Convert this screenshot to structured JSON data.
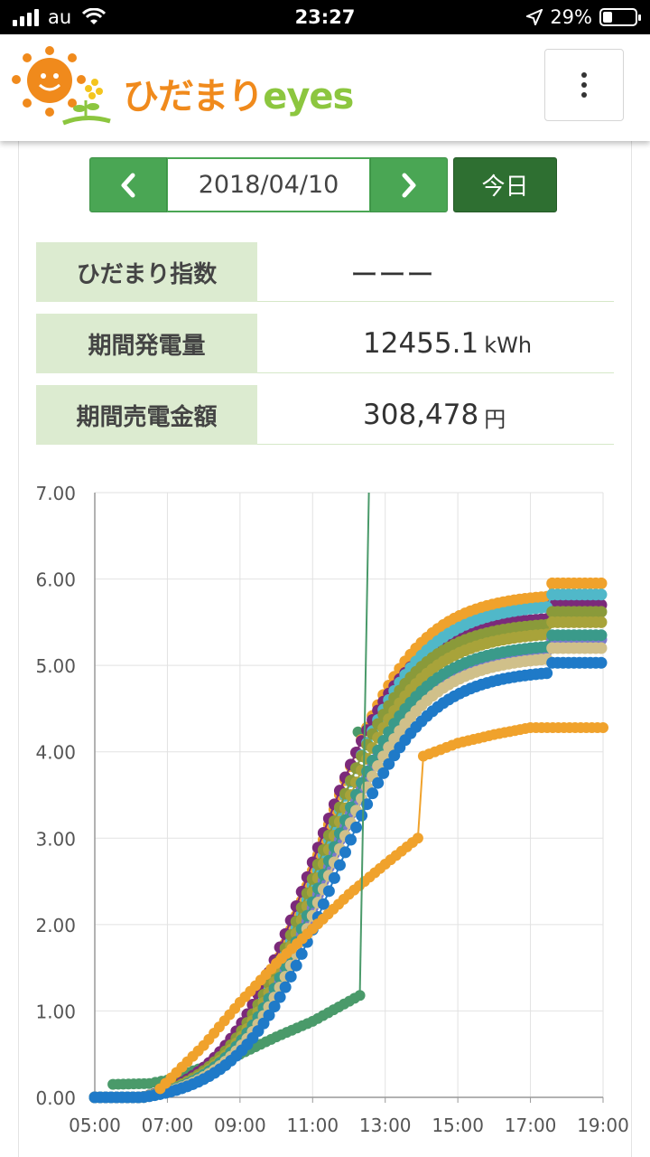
{
  "status_bar": {
    "carrier": "au",
    "time": "23:27",
    "battery": "29%"
  },
  "header": {
    "logo_jp": "ひだまり",
    "logo_en": "eyes",
    "menu_icon": "kebab-menu-icon"
  },
  "date_nav": {
    "prev_icon": "chevron-left-icon",
    "next_icon": "chevron-right-icon",
    "date": "2018/04/10",
    "today_label": "今日"
  },
  "info": {
    "index_label": "ひだまり指数",
    "index_value": "ーーー",
    "generation_label": "期間発電量",
    "generation_value": "12455.1",
    "generation_unit": "kWh",
    "sales_label": "期間売電金額",
    "sales_value": "308,478",
    "sales_unit": "円"
  },
  "colors": {
    "green": "#4aa654",
    "dark_green": "#2e6f31",
    "label_bg": "#dcebd0"
  },
  "chart_data": {
    "type": "line",
    "title": "",
    "xlabel": "",
    "ylabel": "",
    "xlim": [
      5,
      19
    ],
    "ylim": [
      0,
      7
    ],
    "x_ticks": [
      "05:00",
      "07:00",
      "09:00",
      "11:00",
      "13:00",
      "15:00",
      "17:00",
      "19:00"
    ],
    "y_ticks": [
      "0.00",
      "1.00",
      "2.00",
      "3.00",
      "4.00",
      "5.00",
      "6.00",
      "7.00"
    ],
    "grid": true,
    "series": [
      {
        "color": "#f0a22c",
        "final": 5.95,
        "mid": 11.2
      },
      {
        "color": "#7b2a7a",
        "final": 5.7,
        "mid": 11.0
      },
      {
        "color": "#50b8c9",
        "final": 5.82,
        "mid": 11.3
      },
      {
        "color": "#8a9a3a",
        "final": 5.62,
        "mid": 11.15
      },
      {
        "color": "#a8a33a",
        "final": 5.5,
        "mid": 11.25
      },
      {
        "color": "#7a7acc",
        "final": 5.3,
        "mid": 11.35
      },
      {
        "color": "#3a9a8a",
        "final": 5.35,
        "mid": 11.3
      },
      {
        "color": "#d0c08a",
        "final": 5.2,
        "mid": 11.4
      },
      {
        "color": "#1f7ac8",
        "final": 5.03,
        "mid": 11.5
      }
    ],
    "anomaly_green": {
      "color": "#4a9a6a",
      "points": [
        [
          5.5,
          0.15
        ],
        [
          6.5,
          0.16
        ],
        [
          7.0,
          0.2
        ],
        [
          8.0,
          0.35
        ],
        [
          9.0,
          0.5
        ],
        [
          10.0,
          0.7
        ],
        [
          11.0,
          0.88
        ],
        [
          12.3,
          1.18
        ],
        [
          12.55,
          7.0
        ]
      ],
      "outlier": [
        12.25,
        4.23
      ]
    },
    "anomaly_orange": {
      "color": "#f0a22c",
      "points": [
        [
          6.8,
          0.1
        ],
        [
          8.0,
          0.6
        ],
        [
          9.0,
          1.1
        ],
        [
          10.0,
          1.55
        ],
        [
          11.0,
          1.95
        ],
        [
          12.0,
          2.35
        ],
        [
          13.0,
          2.7
        ],
        [
          13.9,
          3.0
        ],
        [
          14.05,
          3.95
        ],
        [
          15.0,
          4.1
        ],
        [
          16.0,
          4.2
        ],
        [
          17.0,
          4.28
        ],
        [
          19.0,
          4.28
        ]
      ]
    }
  }
}
